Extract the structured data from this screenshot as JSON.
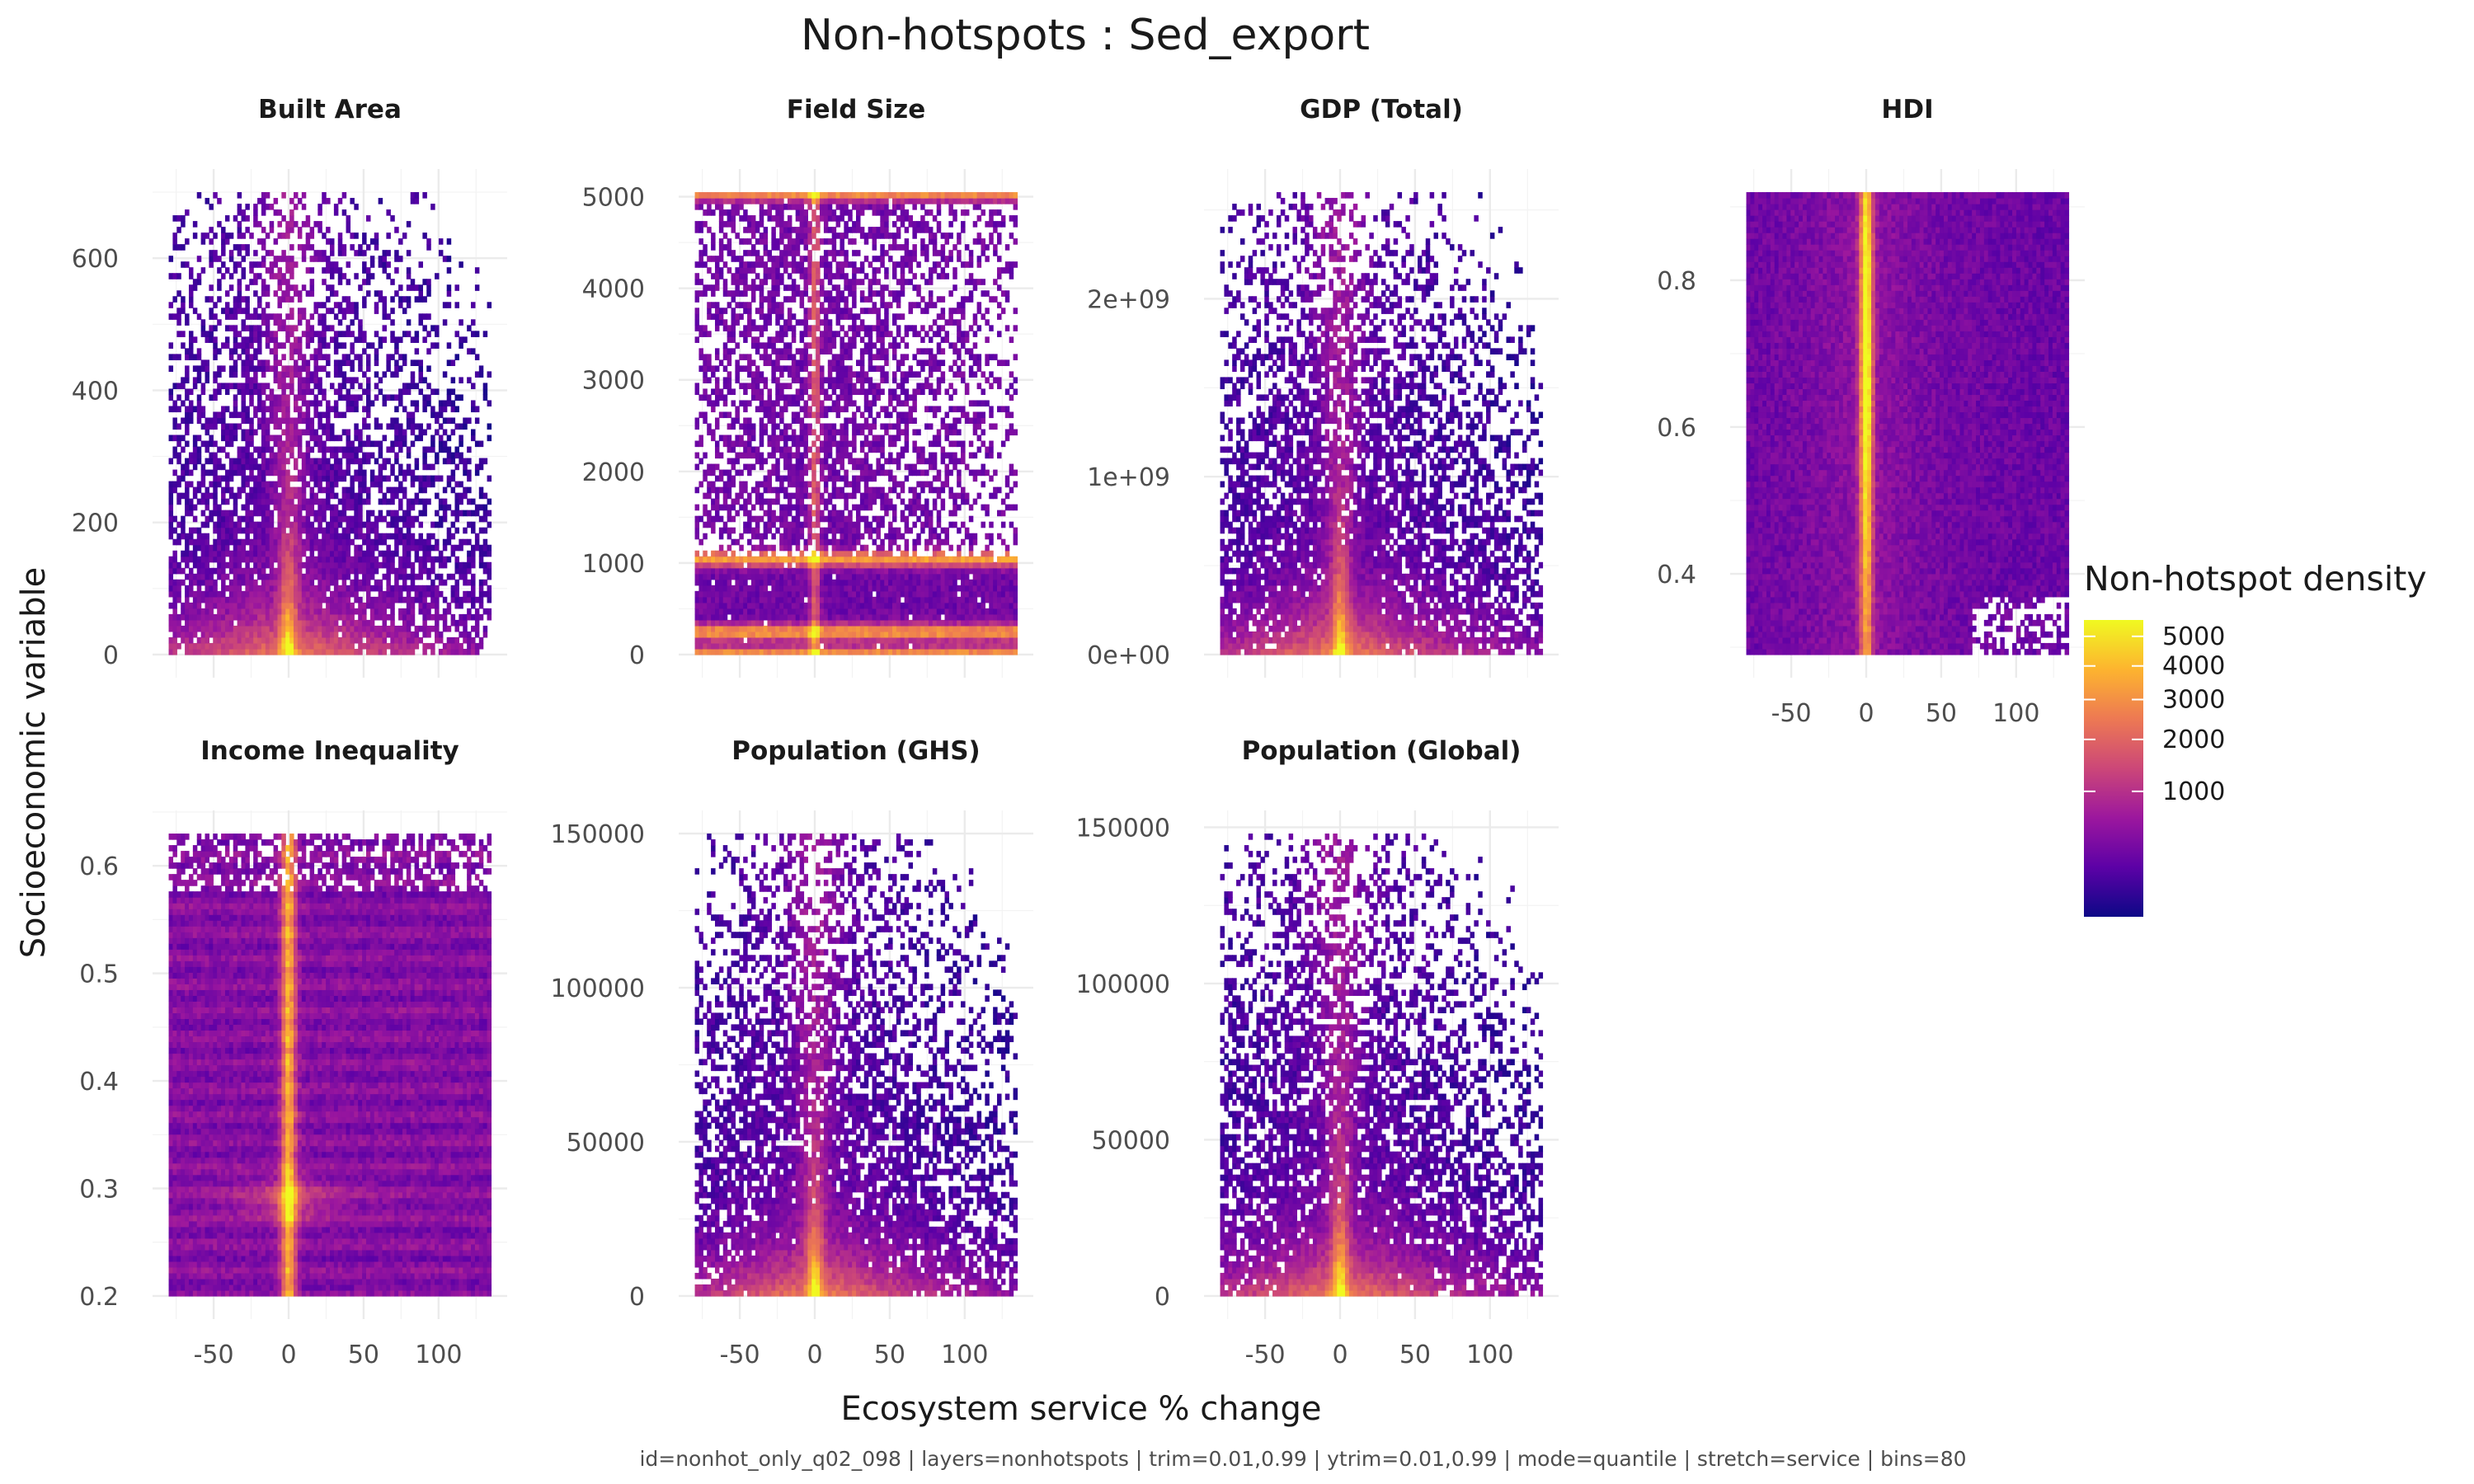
{
  "title": "Non-hotspots : Sed_export",
  "xlabel": "Ecosystem service % change",
  "ylabel": "Socioeconomic variable",
  "caption": "id=nonhot_only_q02_098 | layers=nonhotspots | trim=0.01,0.99 | ytrim=0.01,0.99 | mode=quantile | stretch=service | bins=80",
  "legend": {
    "title": "Non-hotspot density",
    "ticks": [
      "5000",
      "4000",
      "3000",
      "2000",
      "1000"
    ],
    "tick_values": [
      5000,
      4000,
      3000,
      2000,
      1000
    ],
    "colors": [
      "#0d0887",
      "#5c01a6",
      "#9c179e",
      "#cc4778",
      "#ed7953",
      "#fdb42f",
      "#f0f921"
    ]
  },
  "chart_data": {
    "type": "heatmap",
    "bins": 80,
    "color_scale": "plasma",
    "fill_label": "Non-hotspot density",
    "xlim": [
      -80,
      135
    ],
    "x_ticks": [
      -50,
      0,
      50,
      100
    ],
    "x_tick_labels": [
      "-50",
      "0",
      "50",
      "100"
    ],
    "panels": [
      {
        "title": "Built Area",
        "ylim": [
          0,
          700
        ],
        "y_ticks": [
          0,
          200,
          400,
          600
        ],
        "y_tick_labels": [
          "0",
          "200",
          "400",
          "600"
        ],
        "pattern": "funnel",
        "peak": "bottom",
        "show_x_axis": false
      },
      {
        "title": "Field Size",
        "ylim": [
          0,
          5050
        ],
        "y_ticks": [
          0,
          1000,
          2000,
          3000,
          4000,
          5000
        ],
        "y_tick_labels": [
          "0",
          "1000",
          "2000",
          "3000",
          "4000",
          "5000"
        ],
        "pattern": "bands",
        "band_values": [
          0,
          250,
          1050,
          5050
        ],
        "show_x_axis": false
      },
      {
        "title": "GDP (Total)",
        "ylim": [
          0,
          2600000000
        ],
        "y_ticks": [
          0,
          1000000000,
          2000000000
        ],
        "y_tick_labels": [
          "0e+00",
          "1e+09",
          "2e+09"
        ],
        "pattern": "funnel",
        "peak": "bottom",
        "show_x_axis": false
      },
      {
        "title": "HDI",
        "ylim": [
          0.29,
          0.92
        ],
        "y_ticks": [
          0.4,
          0.6,
          0.8
        ],
        "y_tick_labels": [
          "0.4",
          "0.6",
          "0.8"
        ],
        "pattern": "column",
        "show_x_axis": true
      },
      {
        "title": "Income Inequality",
        "ylim": [
          0.2,
          0.63
        ],
        "y_ticks": [
          0.2,
          0.3,
          0.4,
          0.5,
          0.6
        ],
        "y_tick_labels": [
          "0.2",
          "0.3",
          "0.4",
          "0.5",
          "0.6"
        ],
        "pattern": "striped",
        "peak_value": 0.29,
        "show_x_axis": true
      },
      {
        "title": "Population (GHS)",
        "ylim": [
          0,
          150000
        ],
        "y_ticks": [
          0,
          50000,
          100000,
          150000
        ],
        "y_tick_labels": [
          "0",
          "50000",
          "100000",
          "150000"
        ],
        "pattern": "funnel",
        "peak": "bottom",
        "show_x_axis": true
      },
      {
        "title": "Population (Global)",
        "ylim": [
          0,
          148000
        ],
        "y_ticks": [
          0,
          50000,
          100000,
          150000
        ],
        "y_tick_labels": [
          "0",
          "50000",
          "100000",
          "150000"
        ],
        "pattern": "funnel",
        "peak": "bottom",
        "show_x_axis": true
      }
    ]
  }
}
